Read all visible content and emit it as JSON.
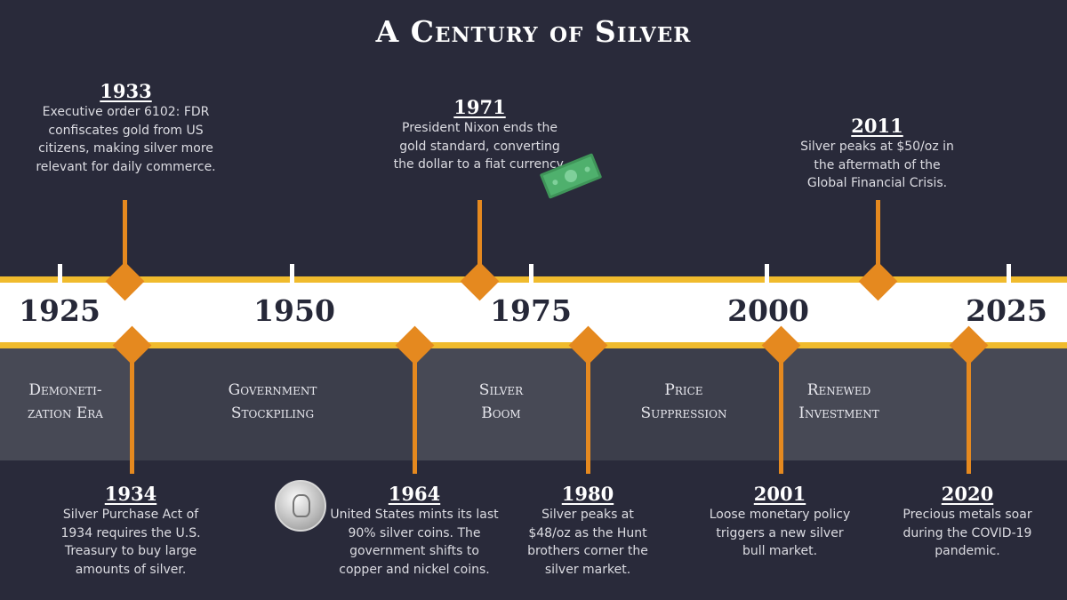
{
  "title": "A Century of Silver",
  "colors": {
    "background": "#292a3a",
    "accent_orange": "#e5891f",
    "accent_yellow": "#f0bb2d",
    "band_light": "#474955",
    "band_dark": "#3c3e4b"
  },
  "decades": [
    "1925",
    "1950",
    "1975",
    "2000",
    "2025"
  ],
  "eras": [
    "Demoneti-\nzation Era",
    "Government\nStockpiling",
    "Silver\nBoom",
    "Price\nSuppression",
    "Renewed\nInvestment"
  ],
  "events_top": [
    {
      "year": "1933",
      "text": "Executive order 6102: FDR confiscates gold from US citizens, making silver more relevant for daily commerce."
    },
    {
      "year": "1971",
      "text": "President Nixon ends the gold standard, converting the dollar to a fiat currency."
    },
    {
      "year": "2011",
      "text": "Silver peaks at $50/oz in the aftermath of the Global Financial Crisis."
    }
  ],
  "events_bottom": [
    {
      "year": "1934",
      "text": "Silver Purchase Act of 1934 requires the U.S. Treasury to buy large amounts of silver."
    },
    {
      "year": "1964",
      "text": "United States mints its last 90% silver coins. The government shifts to copper and nickel coins."
    },
    {
      "year": "1980",
      "text": "Silver peaks at $48/oz as the Hunt brothers corner the silver market."
    },
    {
      "year": "2001",
      "text": "Loose monetary policy triggers a new silver bull market."
    },
    {
      "year": "2020",
      "text": "Precious metals soar during the COVID-19 pandemic."
    }
  ],
  "icons": [
    "dollar-bill-icon",
    "silver-quarter-coin-icon"
  ]
}
